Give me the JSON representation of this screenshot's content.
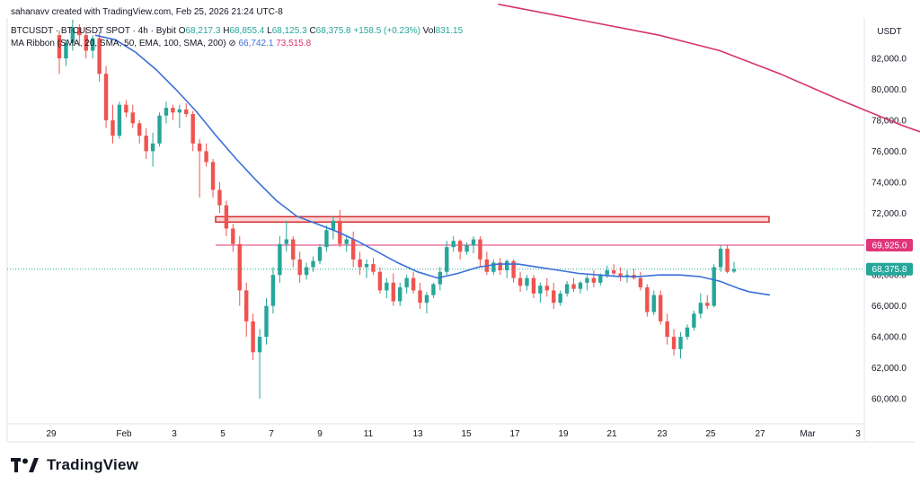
{
  "header": {
    "created_line": "sahanavv created with TradingView.com, Feb 25, 2026 21:24 UTC-8",
    "symbol": "BTCUSDT · BTCUSDT SPOT · 4h · Bybit",
    "o_label": "O",
    "o_value": "68,217.3",
    "h_label": "H",
    "h_value": "68,855.4",
    "l_label": "L",
    "l_value": "68,125.3",
    "c_label": "C",
    "c_value": "68,375.8",
    "change": "+158.5 (+0.23%)",
    "vol_label": "Vol",
    "vol_value": "831.15",
    "ma_label": "MA Ribbon (SMA, 20, SMA, 50, EMA, 100, SMA, 200)",
    "ma_eye": "⊘",
    "ma_value_1": "66,742.1",
    "ma_value_2": "73,515.8"
  },
  "currency": "USDT",
  "colors": {
    "up": "#26a69a",
    "down": "#ef5350",
    "ma_blue": "#3a6fd8",
    "ma_red": "#d6336c",
    "zone_fill": "#fbd6d6",
    "zone_stroke": "#d32f2f",
    "resistance": "#e0357a"
  },
  "chart_data": {
    "type": "candlestick",
    "y_ticks": [
      "82,000.0",
      "80,000.0",
      "78,000.0",
      "76,000.0",
      "74,000.0",
      "72,000.0",
      "68,000.0",
      "66,000.0",
      "64,000.0",
      "62,000.0",
      "60,000.0"
    ],
    "x_ticks": [
      "29",
      "Feb",
      "3",
      "5",
      "7",
      "9",
      "11",
      "13",
      "15",
      "17",
      "19",
      "21",
      "23",
      "25",
      "27",
      "Mar",
      "3"
    ],
    "ylim": [
      59000,
      84000
    ],
    "resistance_label": "69,925.0",
    "last_price_label": "68,375.8",
    "resistance_price": 69925,
    "last_price": 68375.8,
    "zone": {
      "low": 71300,
      "high": 71650,
      "from": "Feb 4",
      "to": "Feb 27"
    },
    "candles": [
      [
        83500,
        83800,
        81000,
        82000
      ],
      [
        82000,
        83200,
        81500,
        83000
      ],
      [
        83000,
        84500,
        82500,
        84000
      ],
      [
        84000,
        84200,
        82800,
        83500
      ],
      [
        83500,
        84000,
        82000,
        82500
      ],
      [
        82500,
        83500,
        82000,
        83300
      ],
      [
        83300,
        83700,
        80500,
        81000
      ],
      [
        81000,
        81500,
        77500,
        78000
      ],
      [
        78000,
        79000,
        76500,
        77000
      ],
      [
        77000,
        79200,
        76800,
        79000
      ],
      [
        79000,
        79300,
        78200,
        78500
      ],
      [
        78500,
        79000,
        77500,
        77800
      ],
      [
        77800,
        78000,
        76500,
        77000
      ],
      [
        77000,
        77500,
        75500,
        76000
      ],
      [
        76000,
        77200,
        75000,
        76500
      ],
      [
        76500,
        78500,
        76300,
        78300
      ],
      [
        78300,
        79200,
        77800,
        78800
      ],
      [
        78800,
        79000,
        78000,
        78500
      ],
      [
        78500,
        79000,
        77500,
        78700
      ],
      [
        78700,
        79100,
        78200,
        78400
      ],
      [
        78400,
        78600,
        76000,
        76500
      ],
      [
        76500,
        76800,
        73000,
        76000
      ],
      [
        76000,
        76500,
        75000,
        75300
      ],
      [
        75300,
        75500,
        73000,
        73500
      ],
      [
        73500,
        74000,
        72000,
        72500
      ],
      [
        72500,
        72800,
        70500,
        71000
      ],
      [
        71000,
        71300,
        69500,
        70000
      ],
      [
        70000,
        70500,
        66000,
        67000
      ],
      [
        67000,
        67500,
        64000,
        65000
      ],
      [
        65000,
        65500,
        62500,
        63000
      ],
      [
        63000,
        64500,
        60000,
        64000
      ],
      [
        64000,
        66500,
        63500,
        66000
      ],
      [
        66000,
        68500,
        65500,
        68000
      ],
      [
        68000,
        70500,
        67500,
        70000
      ],
      [
        70000,
        71500,
        69500,
        70300
      ],
      [
        70300,
        70500,
        68500,
        69000
      ],
      [
        69000,
        69500,
        67500,
        68000
      ],
      [
        68000,
        68800,
        67700,
        68500
      ],
      [
        68500,
        69200,
        68200,
        68900
      ],
      [
        68900,
        70000,
        68700,
        69800
      ],
      [
        69800,
        71200,
        69500,
        70900
      ],
      [
        70900,
        71800,
        70300,
        71500
      ],
      [
        71500,
        72200,
        69800,
        70000
      ],
      [
        70000,
        70600,
        69500,
        70300
      ],
      [
        70300,
        70800,
        68500,
        69000
      ],
      [
        69000,
        69500,
        68000,
        68500
      ],
      [
        68500,
        69000,
        67800,
        68700
      ],
      [
        68700,
        69100,
        68000,
        68200
      ],
      [
        68200,
        68500,
        66800,
        67000
      ],
      [
        67000,
        67800,
        66500,
        67500
      ],
      [
        67500,
        68100,
        66000,
        66300
      ],
      [
        66300,
        67500,
        66000,
        67200
      ],
      [
        67200,
        68000,
        66800,
        67800
      ],
      [
        67800,
        68200,
        66800,
        67000
      ],
      [
        67000,
        67500,
        65800,
        66200
      ],
      [
        66200,
        66900,
        65500,
        66700
      ],
      [
        66700,
        67500,
        66500,
        67400
      ],
      [
        67400,
        68500,
        67000,
        68200
      ],
      [
        68200,
        70200,
        68000,
        69800
      ],
      [
        69800,
        70500,
        69500,
        70200
      ],
      [
        70200,
        70300,
        69000,
        69500
      ],
      [
        69500,
        70100,
        69300,
        69900
      ],
      [
        69900,
        70500,
        69400,
        70300
      ],
      [
        70300,
        70500,
        68500,
        69000
      ],
      [
        69000,
        69500,
        68000,
        68200
      ],
      [
        68200,
        69000,
        68000,
        68800
      ],
      [
        68800,
        69100,
        68000,
        68300
      ],
      [
        68300,
        69000,
        67800,
        68900
      ],
      [
        68900,
        69000,
        67500,
        67800
      ],
      [
        67800,
        68200,
        66900,
        67300
      ],
      [
        67300,
        68000,
        67000,
        67800
      ],
      [
        67800,
        68000,
        66500,
        66800
      ],
      [
        66800,
        67500,
        66200,
        67300
      ],
      [
        67300,
        67800,
        66600,
        67000
      ],
      [
        67000,
        67500,
        65800,
        66200
      ],
      [
        66200,
        67000,
        66000,
        66800
      ],
      [
        66800,
        67600,
        66600,
        67400
      ],
      [
        67400,
        67800,
        66900,
        67100
      ],
      [
        67100,
        67600,
        66800,
        67500
      ],
      [
        67500,
        68000,
        67000,
        67800
      ],
      [
        67800,
        68300,
        67200,
        67500
      ],
      [
        67500,
        68100,
        67300,
        68000
      ],
      [
        68000,
        68600,
        67800,
        68300
      ],
      [
        68300,
        68700,
        67900,
        68100
      ],
      [
        68100,
        68500,
        67600,
        67900
      ],
      [
        67900,
        68300,
        67500,
        68000
      ],
      [
        68000,
        68400,
        67700,
        67800
      ],
      [
        67800,
        68200,
        67000,
        67200
      ],
      [
        67200,
        67400,
        65300,
        65600
      ],
      [
        65600,
        67000,
        65400,
        66700
      ],
      [
        66700,
        67000,
        64800,
        65000
      ],
      [
        65000,
        65500,
        63500,
        64000
      ],
      [
        64000,
        64500,
        62800,
        63200
      ],
      [
        63200,
        64300,
        62600,
        64000
      ],
      [
        64000,
        64800,
        63800,
        64600
      ],
      [
        64600,
        65700,
        64400,
        65500
      ],
      [
        65500,
        66800,
        65200,
        66200
      ],
      [
        66200,
        66700,
        65800,
        66000
      ],
      [
        66000,
        68700,
        65900,
        68500
      ],
      [
        68500,
        69900,
        68200,
        69700
      ],
      [
        69700,
        69900,
        68100,
        68200
      ],
      [
        68217,
        68855,
        68125,
        68376
      ]
    ],
    "ma_blue_series": [
      [
        83500,
        0
      ],
      [
        83200,
        2
      ],
      [
        82400,
        4
      ],
      [
        81300,
        6
      ],
      [
        80000,
        8
      ],
      [
        78600,
        10
      ],
      [
        77000,
        12
      ],
      [
        75500,
        14
      ],
      [
        74100,
        16
      ],
      [
        72800,
        18
      ],
      [
        71800,
        20
      ],
      [
        71300,
        22
      ],
      [
        70800,
        24
      ],
      [
        70200,
        26
      ],
      [
        69500,
        28
      ],
      [
        68800,
        30
      ],
      [
        68200,
        32
      ],
      [
        67800,
        34
      ],
      [
        68100,
        36
      ],
      [
        68500,
        38
      ],
      [
        68700,
        40
      ],
      [
        68700,
        42
      ],
      [
        68500,
        44
      ],
      [
        68300,
        46
      ],
      [
        68100,
        48
      ],
      [
        68000,
        50
      ],
      [
        67900,
        52
      ],
      [
        67900,
        54
      ],
      [
        68000,
        56
      ],
      [
        68000,
        58
      ],
      [
        67900,
        60
      ],
      [
        67600,
        62
      ],
      [
        67100,
        64
      ],
      [
        66900,
        65
      ],
      [
        66700,
        67
      ]
    ],
    "ma_red_series": [
      [
        85500,
        40
      ],
      [
        84500,
        48
      ],
      [
        83500,
        56
      ],
      [
        82500,
        62
      ],
      [
        81000,
        68
      ],
      [
        79300,
        74
      ],
      [
        77700,
        80
      ],
      [
        76300,
        86
      ],
      [
        75000,
        92
      ],
      [
        73500,
        99
      ]
    ]
  }
}
